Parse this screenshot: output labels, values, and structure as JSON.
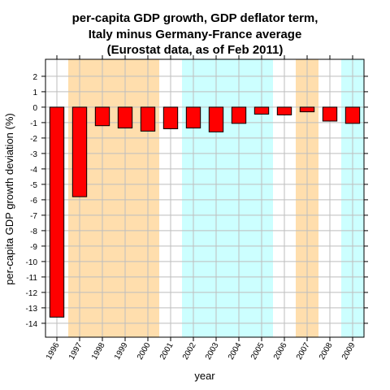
{
  "chart_data": {
    "type": "bar",
    "title": [
      "per-capita GDP growth, GDP deflator term,",
      "Italy minus Germany-France average",
      "(Eurostat data, as of Feb 2011)"
    ],
    "xlabel": "year",
    "ylabel": "per-capita GDP growth deviation (%)",
    "categories": [
      "1996",
      "1997",
      "1998",
      "1999",
      "2000",
      "2001",
      "2002",
      "2003",
      "2004",
      "2005",
      "2006",
      "2007",
      "2008",
      "2009"
    ],
    "values": [
      -13.6,
      -5.8,
      -1.2,
      -1.35,
      -1.55,
      -1.4,
      -1.35,
      -1.6,
      -1.05,
      -0.45,
      -0.5,
      -0.3,
      -0.9,
      -1.05
    ],
    "yticks": [
      2,
      1,
      0,
      -1,
      -2,
      -3,
      -4,
      -5,
      -6,
      -7,
      -8,
      -9,
      -10,
      -11,
      -12,
      -13,
      -14
    ],
    "ylim": [
      -14.9,
      3.1
    ],
    "grid": true,
    "bar_color": "#ff0000",
    "bar_edge_color": "#000000",
    "background_bands": [
      {
        "from": "1997",
        "to": "2000",
        "color": "#ffdead"
      },
      {
        "from": "2002",
        "to": "2005",
        "color": "#ccffff"
      },
      {
        "from": "2007",
        "to": "2007",
        "color": "#ffdead"
      },
      {
        "from": "2009",
        "to": "2009",
        "color": "#ccffff"
      }
    ]
  }
}
